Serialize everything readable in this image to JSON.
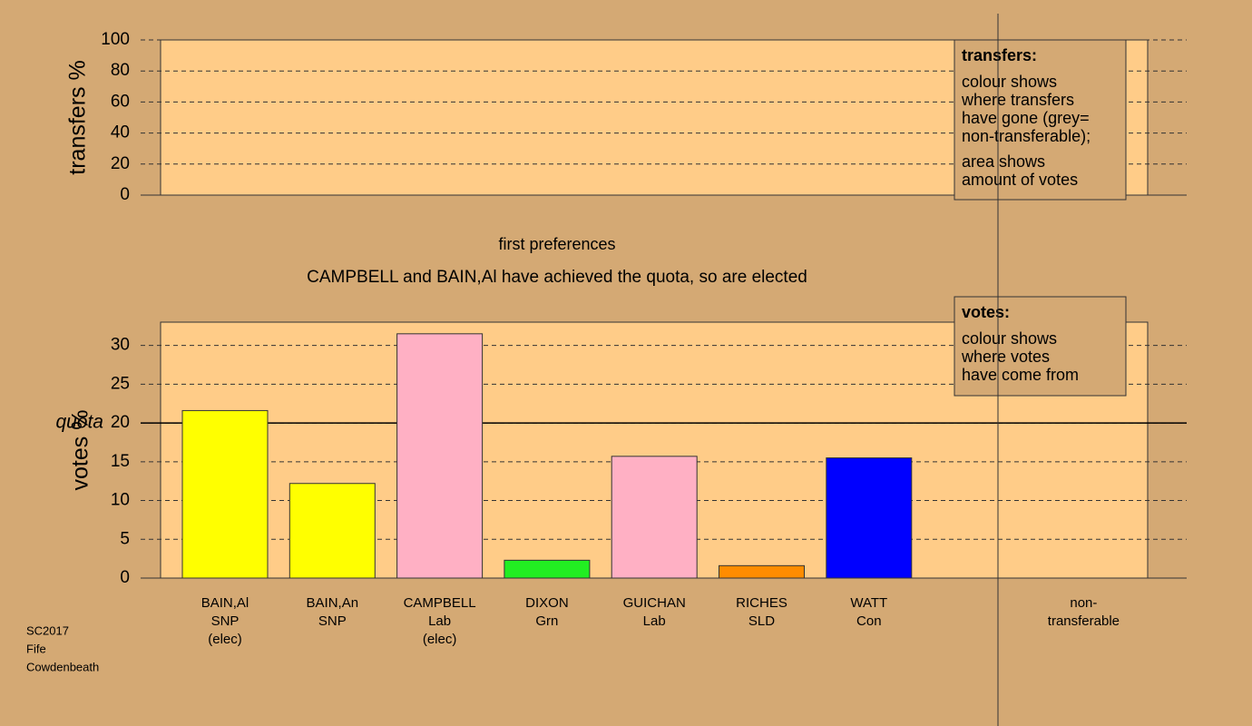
{
  "chart_data": [
    {
      "type": "bar",
      "ylabel": "transfers %",
      "ylim": [
        0,
        100
      ],
      "yticks": [
        0,
        20,
        40,
        60,
        80,
        100
      ],
      "grid": true,
      "legend": {
        "title": "transfers:",
        "lines": [
          "colour shows",
          "where transfers",
          "have gone (grey=",
          "non-transferable);",
          "area shows",
          "amount of votes"
        ]
      }
    },
    {
      "type": "bar",
      "subtitle": "first preferences",
      "title": "CAMPBELL and BAIN,Al have achieved the quota, so are elected",
      "ylabel": "votes %",
      "ylim": [
        0,
        33
      ],
      "yticks": [
        0,
        5,
        10,
        15,
        20,
        25,
        30
      ],
      "grid": true,
      "quota": {
        "value": 20,
        "label": "quota"
      },
      "categories": [
        [
          "BAIN,Al",
          "SNP",
          "(elec)"
        ],
        [
          "BAIN,An",
          "SNP"
        ],
        [
          "CAMPBELL",
          "Lab",
          "(elec)"
        ],
        [
          "DIXON",
          "Grn"
        ],
        [
          "GUICHAN",
          "Lab"
        ],
        [
          "RICHES",
          "SLD"
        ],
        [
          "WATT",
          "Con"
        ],
        [
          "non-",
          "transferable"
        ]
      ],
      "values": [
        21.6,
        12.2,
        31.5,
        2.3,
        15.7,
        1.6,
        15.5,
        null
      ],
      "colors": [
        "#ffff00",
        "#ffff00",
        "#ffb0c4",
        "#22ee22",
        "#ffb0c4",
        "#ff8c00",
        "#0000ff",
        null
      ],
      "legend": {
        "title": "votes:",
        "lines": [
          "colour shows",
          "where votes",
          "have come from"
        ]
      }
    }
  ],
  "footer": [
    "SC2017",
    "Fife",
    "Cowdenbeath"
  ]
}
